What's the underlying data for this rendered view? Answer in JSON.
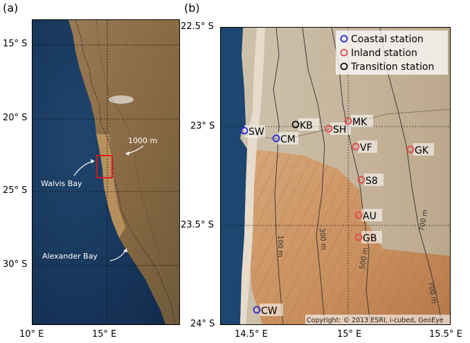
{
  "panel_a": {
    "label": "(a)",
    "lat_ticks": [
      "15° S",
      "20° S",
      "25° S",
      "30° S"
    ],
    "lon_ticks": [
      "10° E",
      "15° E"
    ],
    "annotations": {
      "contour": "1000 m",
      "walvis": "Walvis Bay",
      "alexander": "Alexander Bay"
    }
  },
  "panel_b": {
    "label": "(b)",
    "lat_ticks": [
      "22.5° S",
      "23° S",
      "23.5° S",
      "24° S"
    ],
    "lon_ticks": [
      "14.5° E",
      "15° E",
      "15.5° E"
    ],
    "legend": [
      {
        "label": "Coastal station",
        "color": "#2a2adc"
      },
      {
        "label": "Inland station",
        "color": "#e8484d"
      },
      {
        "label": "Transition station",
        "color": "#111111"
      }
    ],
    "stations": [
      {
        "code": "SW",
        "type": "coastal"
      },
      {
        "code": "CM",
        "type": "coastal"
      },
      {
        "code": "CW",
        "type": "coastal"
      },
      {
        "code": "KB",
        "type": "transition"
      },
      {
        "code": "SH",
        "type": "inland"
      },
      {
        "code": "MK",
        "type": "inland"
      },
      {
        "code": "VF",
        "type": "inland"
      },
      {
        "code": "GK",
        "type": "inland"
      },
      {
        "code": "S8",
        "type": "inland"
      },
      {
        "code": "AU",
        "type": "inland"
      },
      {
        "code": "GB",
        "type": "inland"
      }
    ],
    "contour_labels": [
      "100 m",
      "300 m",
      "500 m",
      "700 m",
      "700 m"
    ],
    "credit": "Copyright: © 2013 ESRI, i-cubed, GeoEye"
  }
}
